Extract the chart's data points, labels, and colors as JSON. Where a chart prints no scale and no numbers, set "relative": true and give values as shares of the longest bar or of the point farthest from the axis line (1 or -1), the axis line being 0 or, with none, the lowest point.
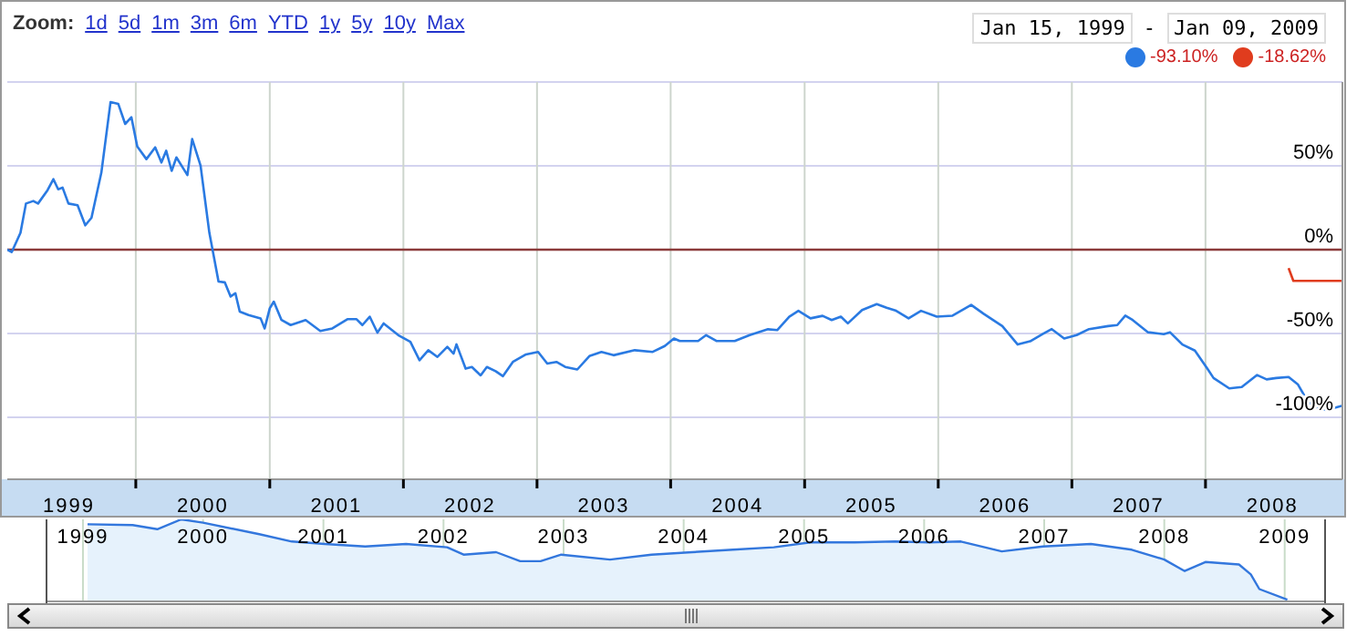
{
  "chart_data": [
    {
      "type": "line",
      "annotations": [
        "Zoom:",
        "1d",
        "5d",
        "1m",
        "3m",
        "6m",
        "YTD",
        "1y",
        "5y",
        "10y",
        "Max",
        "Jan 15, 1999",
        "-",
        "Jan 09, 2009",
        "-93.10%",
        "-18.62%"
      ],
      "xlim": [
        "1999-01-15",
        "2009-01-09"
      ],
      "xticks": [
        {
          "value": "1999-07-02",
          "label": "1999"
        },
        {
          "value": "2000-01-01",
          "label": null
        },
        {
          "value": "2000-07-02",
          "label": "2000"
        },
        {
          "value": "2001-01-01",
          "label": null
        },
        {
          "value": "2001-07-02",
          "label": "2001"
        },
        {
          "value": "2002-01-01",
          "label": null
        },
        {
          "value": "2002-07-02",
          "label": "2002"
        },
        {
          "value": "2003-01-01",
          "label": null
        },
        {
          "value": "2003-07-02",
          "label": "2003"
        },
        {
          "value": "2004-01-01",
          "label": null
        },
        {
          "value": "2004-07-02",
          "label": "2004"
        },
        {
          "value": "2005-01-01",
          "label": null
        },
        {
          "value": "2005-07-02",
          "label": "2005"
        },
        {
          "value": "2006-01-01",
          "label": null
        },
        {
          "value": "2006-07-02",
          "label": "2006"
        },
        {
          "value": "2007-01-01",
          "label": null
        },
        {
          "value": "2007-07-02",
          "label": "2007"
        },
        {
          "value": "2008-01-01",
          "label": null
        },
        {
          "value": "2008-07-02",
          "label": "2008"
        }
      ],
      "ylim": [
        -137,
        100
      ],
      "yticks": [
        {
          "value": 50,
          "label": "50%"
        },
        {
          "value": 0,
          "label": "0%"
        },
        {
          "value": -50,
          "label": "-50%"
        },
        {
          "value": -100,
          "label": "-100%"
        }
      ],
      "grid": true,
      "ref_lines": [
        {
          "axis": "y",
          "value": 0,
          "color": "#8b3a3a"
        }
      ],
      "series": [
        {
          "color": "#2a7ae2",
          "x": [
            "1999-01-15",
            "1999-01-27",
            "1999-02-20",
            "1999-03-07",
            "1999-03-27",
            "1999-04-09",
            "1999-05-05",
            "1999-05-21",
            "1999-06-03",
            "1999-06-15",
            "1999-07-01",
            "1999-07-26",
            "1999-08-16",
            "1999-09-02",
            "1999-09-29",
            "1999-10-24",
            "1999-11-14",
            "1999-12-03",
            "1999-12-20",
            "2000-01-05",
            "2000-01-30",
            "2000-02-23",
            "2000-03-11",
            "2000-03-24",
            "2000-04-08",
            "2000-04-21",
            "2000-05-21",
            "2000-06-03",
            "2000-06-26",
            "2000-07-20",
            "2000-08-14",
            "2000-08-31",
            "2000-09-16",
            "2000-09-29",
            "2000-10-11",
            "2000-11-04",
            "2000-12-07",
            "2000-12-18",
            "2001-01-01",
            "2001-01-12",
            "2001-02-02",
            "2001-02-27",
            "2001-04-09",
            "2001-05-19",
            "2001-06-21",
            "2001-08-01",
            "2001-08-26",
            "2001-09-11",
            "2001-10-01",
            "2001-10-22",
            "2001-11-08",
            "2001-12-18",
            "2002-01-20",
            "2002-02-14",
            "2002-03-10",
            "2002-04-04",
            "2002-05-01",
            "2002-05-18",
            "2002-05-26",
            "2002-06-20",
            "2002-07-07",
            "2002-07-31",
            "2002-08-17",
            "2002-09-10",
            "2002-09-30",
            "2002-10-27",
            "2002-12-02",
            "2003-01-04",
            "2003-01-29",
            "2003-02-23",
            "2003-03-19",
            "2003-04-21",
            "2003-05-24",
            "2003-06-26",
            "2003-07-29",
            "2003-09-25",
            "2003-11-13",
            "2003-12-16",
            "2004-01-10",
            "2004-01-26",
            "2004-03-16",
            "2004-04-07",
            "2004-05-05",
            "2004-06-24",
            "2004-08-04",
            "2004-09-23",
            "2004-10-18",
            "2004-11-20",
            "2004-12-15",
            "2005-01-17",
            "2005-02-19",
            "2005-03-16",
            "2005-04-10",
            "2005-04-29",
            "2005-06-07",
            "2005-07-17",
            "2005-08-13",
            "2005-09-08",
            "2005-10-12",
            "2005-11-15",
            "2005-12-28",
            "2006-02-09",
            "2006-04-01",
            "2006-05-05",
            "2006-06-25",
            "2006-08-06",
            "2006-09-09",
            "2006-10-13",
            "2006-11-07",
            "2006-12-11",
            "2007-01-14",
            "2007-02-17",
            "2007-04-10",
            "2007-05-05",
            "2007-05-27",
            "2007-06-16",
            "2007-07-28",
            "2007-09-09",
            "2007-09-26",
            "2007-10-30",
            "2007-12-03",
            "2008-01-06",
            "2008-01-23",
            "2008-03-06",
            "2008-04-09",
            "2008-05-21",
            "2008-06-16",
            "2008-07-12",
            "2008-08-15",
            "2008-09-09",
            "2008-10-08",
            "2008-10-30",
            "2008-11-25",
            "2008-12-24",
            "2009-01-09"
          ],
          "values": [
            0,
            -1.5,
            10,
            27.5,
            29,
            27.5,
            35.5,
            42,
            36,
            37,
            27.5,
            26.5,
            14.5,
            19,
            46,
            88,
            87,
            75,
            79,
            61.5,
            54,
            61,
            52,
            59,
            47,
            55,
            44.5,
            66,
            50,
            10,
            -19,
            -19.5,
            -28,
            -26,
            -37,
            -39,
            -41,
            -47,
            -35,
            -31,
            -42,
            -45,
            -42,
            -48.5,
            -47,
            -41.5,
            -41.5,
            -45,
            -40,
            -49.5,
            -44,
            -51,
            -55,
            -66,
            -60,
            -64,
            -58,
            -62,
            -56.5,
            -71,
            -70,
            -75,
            -70,
            -72.5,
            -75.5,
            -67,
            -62.5,
            -61,
            -68,
            -67,
            -70,
            -71.5,
            -63.5,
            -61,
            -63,
            -60,
            -61,
            -57.5,
            -53,
            -54.5,
            -54.5,
            -51,
            -54.5,
            -54.5,
            -51,
            -47.5,
            -48,
            -40,
            -36.5,
            -41,
            -39.5,
            -42,
            -40,
            -44,
            -36,
            -32.5,
            -34.7,
            -36.5,
            -41,
            -36.5,
            -40,
            -39.4,
            -33,
            -38.3,
            -45.6,
            -56.6,
            -54.7,
            -50.4,
            -47.4,
            -53,
            -51,
            -47.4,
            -45.6,
            -45,
            -39.4,
            -42,
            -49.3,
            -50.4,
            -49.3,
            -56.6,
            -60.2,
            -71,
            -76.6,
            -82.8,
            -82,
            -74.8,
            -77.4,
            -76.6,
            -76,
            -80.3,
            -91.2,
            -94,
            -95.6,
            -94,
            -93.1
          ]
        },
        {
          "color": "#e03c1e",
          "x": [
            "2008-08-15",
            "2008-08-28",
            "2009-01-09"
          ],
          "values": [
            -11,
            -18.62,
            -18.62
          ]
        }
      ]
    },
    {
      "type": "area",
      "relative": true,
      "grid": "x",
      "xlim": [
        "1998-09-15",
        "2009-05-01"
      ],
      "xticks": [
        {
          "value": "1999-01-01",
          "label": "1999"
        },
        {
          "value": "2000-01-01",
          "label": "2000"
        },
        {
          "value": "2001-01-01",
          "label": "2001"
        },
        {
          "value": "2002-01-01",
          "label": "2002"
        },
        {
          "value": "2003-01-01",
          "label": "2003"
        },
        {
          "value": "2004-01-01",
          "label": "2004"
        },
        {
          "value": "2005-01-01",
          "label": "2005"
        },
        {
          "value": "2006-01-01",
          "label": "2006"
        },
        {
          "value": "2007-01-01",
          "label": "2007"
        },
        {
          "value": "2008-01-01",
          "label": "2008"
        },
        {
          "value": "2009-01-01",
          "label": "2009"
        }
      ],
      "series": [
        {
          "color": "#3377dd",
          "x": [
            "1999-01-15",
            "1999-06-01",
            "1999-08-15",
            "1999-10-27",
            "2000-01-01",
            "2000-06-20",
            "2000-09-27",
            "2001-01-05",
            "2001-05-08",
            "2001-09-09",
            "2002-01-12",
            "2002-03-03",
            "2002-06-10",
            "2002-08-22",
            "2002-10-23",
            "2002-12-25",
            "2003-05-22",
            "2003-09-25",
            "2004-01-27",
            "2004-05-30",
            "2004-10-01",
            "2005-01-20",
            "2005-06-03",
            "2005-10-05",
            "2006-01-15",
            "2006-04-23",
            "2006-08-25",
            "2006-12-28",
            "2007-05-23",
            "2007-09-24",
            "2008-01-01",
            "2008-03-03",
            "2008-05-05",
            "2008-08-15",
            "2008-09-20",
            "2008-10-16",
            "2009-01-09"
          ],
          "values": [
            0.94,
            0.93,
            0.88,
            1,
            0.96,
            0.82,
            0.73,
            0.7,
            0.67,
            0.7,
            0.66,
            0.57,
            0.6,
            0.49,
            0.49,
            0.57,
            0.51,
            0.57,
            0.6,
            0.63,
            0.66,
            0.72,
            0.72,
            0.73,
            0.72,
            0.73,
            0.61,
            0.67,
            0.7,
            0.63,
            0.51,
            0.37,
            0.48,
            0.45,
            0.33,
            0.15,
            0.02
          ]
        }
      ]
    }
  ]
}
